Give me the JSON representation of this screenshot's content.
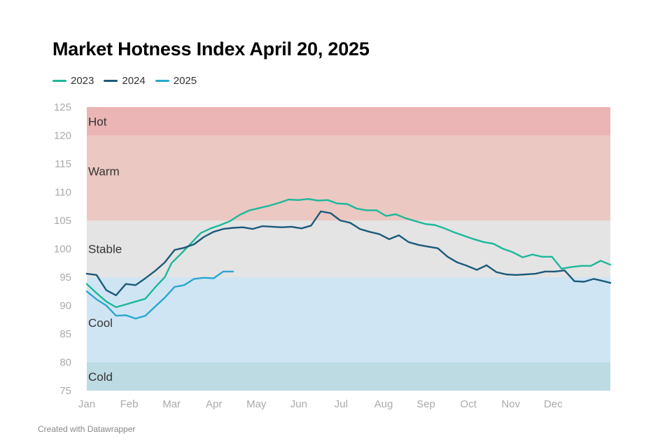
{
  "title": "Market Hotness Index April 20, 2025",
  "footer": "Created with Datawrapper",
  "colors": {
    "2023": "#1bb89a",
    "2024": "#1c5a7a",
    "2025": "#2aa6d1",
    "hot": "#ebb5b5",
    "warm": "#ecc8c2",
    "stable": "#e4e4e4",
    "cool": "#d0e5f3",
    "cold": "#bddbe3"
  },
  "chart_data": {
    "type": "line",
    "title": "Market Hotness Index April 20, 2025",
    "xlabel": "",
    "ylabel": "",
    "ylim": [
      75,
      125
    ],
    "xlim": [
      0,
      12
    ],
    "x_unit": "months since Jan 1",
    "x_tick_labels": [
      "Jan",
      "Feb",
      "Mar",
      "Apr",
      "May",
      "Jun",
      "Jul",
      "Aug",
      "Sep",
      "Oct",
      "Nov",
      "Dec"
    ],
    "y_ticks": [
      75,
      80,
      85,
      90,
      95,
      100,
      105,
      110,
      115,
      120,
      125
    ],
    "legend": {
      "position": "top-left",
      "entries": [
        "2023",
        "2024",
        "2025"
      ]
    },
    "bands": [
      {
        "label": "Hot",
        "from": 120,
        "to": 125
      },
      {
        "label": "Warm",
        "from": 105,
        "to": 120
      },
      {
        "label": "Stable",
        "from": 95,
        "to": 105
      },
      {
        "label": "Cool",
        "from": 80,
        "to": 95
      },
      {
        "label": "Cold",
        "from": 75,
        "to": 80
      }
    ],
    "series": [
      {
        "name": "2023",
        "points": [
          [
            0,
            93.8
          ],
          [
            0.23,
            92.2
          ],
          [
            0.46,
            90.7
          ],
          [
            0.69,
            89.7
          ],
          [
            0.92,
            90.2
          ],
          [
            1.15,
            90.7
          ],
          [
            1.38,
            91.2
          ],
          [
            1.61,
            93.2
          ],
          [
            1.84,
            95.0
          ],
          [
            2.0,
            97.5
          ],
          [
            2.23,
            99.2
          ],
          [
            2.46,
            101.0
          ],
          [
            2.69,
            102.8
          ],
          [
            2.92,
            103.6
          ],
          [
            3.15,
            104.2
          ],
          [
            3.38,
            104.9
          ],
          [
            3.61,
            106.0
          ],
          [
            3.84,
            106.8
          ],
          [
            4.07,
            107.2
          ],
          [
            4.3,
            107.6
          ],
          [
            4.53,
            108.1
          ],
          [
            4.76,
            108.7
          ],
          [
            4.99,
            108.6
          ],
          [
            5.22,
            108.8
          ],
          [
            5.45,
            108.5
          ],
          [
            5.68,
            108.6
          ],
          [
            5.91,
            108.0
          ],
          [
            6.14,
            107.9
          ],
          [
            6.37,
            107.1
          ],
          [
            6.6,
            106.8
          ],
          [
            6.83,
            106.8
          ],
          [
            7.06,
            105.8
          ],
          [
            7.29,
            106.1
          ],
          [
            7.52,
            105.4
          ],
          [
            7.75,
            104.9
          ],
          [
            7.98,
            104.4
          ],
          [
            8.21,
            104.2
          ],
          [
            8.44,
            103.6
          ],
          [
            8.67,
            102.9
          ],
          [
            8.9,
            102.3
          ],
          [
            9.13,
            101.7
          ],
          [
            9.36,
            101.2
          ],
          [
            9.59,
            100.9
          ],
          [
            9.82,
            100.0
          ],
          [
            10.05,
            99.4
          ],
          [
            10.28,
            98.5
          ],
          [
            10.51,
            99.0
          ],
          [
            10.74,
            98.6
          ],
          [
            10.97,
            98.6
          ],
          [
            11.2,
            96.5
          ],
          [
            11.43,
            96.8
          ],
          [
            11.66,
            97.0
          ],
          [
            11.89,
            97.0
          ],
          [
            12.12,
            97.9
          ],
          [
            12.35,
            97.2
          ]
        ]
      },
      {
        "name": "2024",
        "points": [
          [
            0,
            95.6
          ],
          [
            0.23,
            95.4
          ],
          [
            0.46,
            92.7
          ],
          [
            0.69,
            91.8
          ],
          [
            0.92,
            93.8
          ],
          [
            1.15,
            93.6
          ],
          [
            1.38,
            94.8
          ],
          [
            1.61,
            96.1
          ],
          [
            1.84,
            97.6
          ],
          [
            2.07,
            99.8
          ],
          [
            2.3,
            100.2
          ],
          [
            2.53,
            100.8
          ],
          [
            2.76,
            102.1
          ],
          [
            2.99,
            103.0
          ],
          [
            3.22,
            103.5
          ],
          [
            3.45,
            103.7
          ],
          [
            3.68,
            103.8
          ],
          [
            3.91,
            103.5
          ],
          [
            4.14,
            104.0
          ],
          [
            4.37,
            103.9
          ],
          [
            4.6,
            103.8
          ],
          [
            4.83,
            103.9
          ],
          [
            5.06,
            103.6
          ],
          [
            5.29,
            104.1
          ],
          [
            5.52,
            106.6
          ],
          [
            5.75,
            106.3
          ],
          [
            5.98,
            105.0
          ],
          [
            6.21,
            104.6
          ],
          [
            6.44,
            103.5
          ],
          [
            6.67,
            103.0
          ],
          [
            6.9,
            102.6
          ],
          [
            7.13,
            101.7
          ],
          [
            7.36,
            102.4
          ],
          [
            7.59,
            101.2
          ],
          [
            7.82,
            100.7
          ],
          [
            8.05,
            100.4
          ],
          [
            8.28,
            100.1
          ],
          [
            8.51,
            98.6
          ],
          [
            8.74,
            97.6
          ],
          [
            8.97,
            97.0
          ],
          [
            9.2,
            96.3
          ],
          [
            9.43,
            97.1
          ],
          [
            9.66,
            95.9
          ],
          [
            9.89,
            95.5
          ],
          [
            10.12,
            95.4
          ],
          [
            10.35,
            95.5
          ],
          [
            10.58,
            95.6
          ],
          [
            10.81,
            96.0
          ],
          [
            11.04,
            96.0
          ],
          [
            11.27,
            96.2
          ],
          [
            11.5,
            94.3
          ],
          [
            11.73,
            94.2
          ],
          [
            11.96,
            94.7
          ],
          [
            12.19,
            94.3
          ],
          [
            12.35,
            94.0
          ]
        ]
      },
      {
        "name": "2025",
        "points": [
          [
            0,
            92.5
          ],
          [
            0.23,
            91.1
          ],
          [
            0.46,
            90.0
          ],
          [
            0.69,
            88.2
          ],
          [
            0.92,
            88.3
          ],
          [
            1.15,
            87.7
          ],
          [
            1.38,
            88.2
          ],
          [
            1.61,
            89.8
          ],
          [
            1.84,
            91.4
          ],
          [
            2.07,
            93.3
          ],
          [
            2.3,
            93.6
          ],
          [
            2.53,
            94.7
          ],
          [
            2.76,
            94.9
          ],
          [
            2.99,
            94.8
          ],
          [
            3.22,
            96.0
          ],
          [
            3.45,
            96.0
          ]
        ]
      }
    ]
  }
}
